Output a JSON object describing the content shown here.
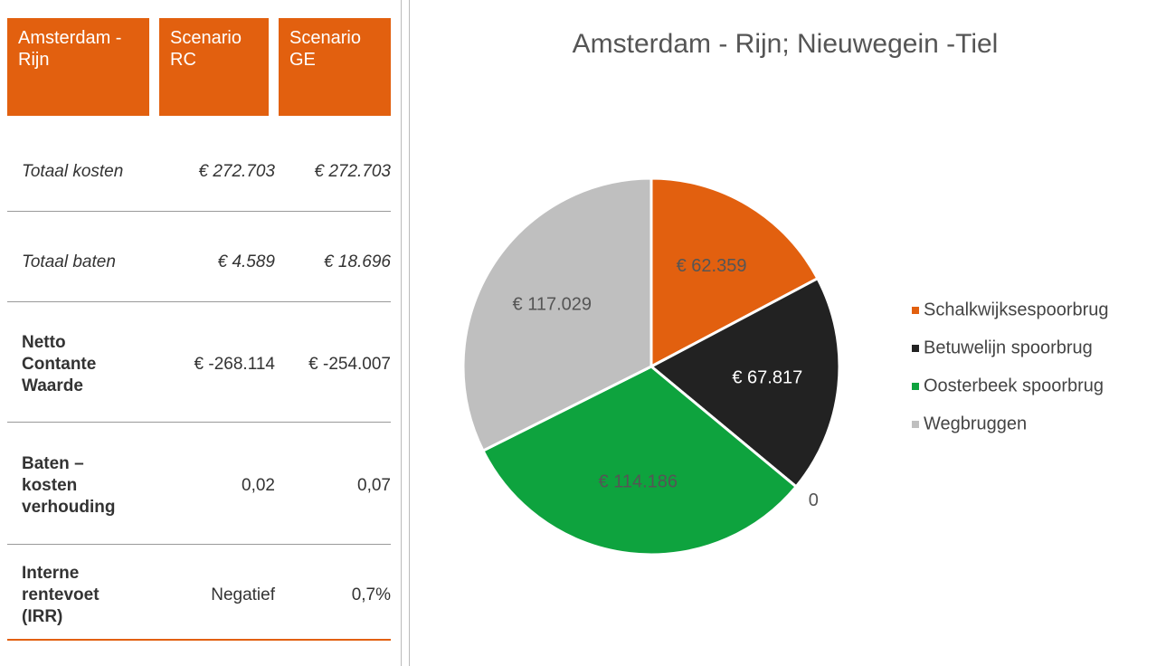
{
  "table": {
    "header": [
      "Amsterdam - Rijn",
      "Scenario RC",
      "Scenario GE"
    ],
    "rows": [
      [
        "Totaal kosten",
        "€ 272.703",
        "€ 272.703"
      ],
      [
        "Totaal baten",
        "€ 4.589",
        "€ 18.696"
      ],
      [
        "Netto Contante Waarde",
        "€ -268.114",
        "€ -254.007"
      ],
      [
        "Baten – kosten verhouding",
        "0,02",
        "0,07"
      ],
      [
        "Interne rentevoet (IRR)",
        "Negatief",
        "0,7%"
      ]
    ]
  },
  "chart_data": {
    "type": "pie",
    "title": "Amsterdam - Rijn; Nieuwegein -Tiel",
    "categories": [
      "Schalkwijksespoorbrug",
      "Betuwelijn spoorbrug",
      null,
      "Oosterbeek spoorbrug",
      "Wegbruggen"
    ],
    "values": [
      62359,
      67817,
      0,
      114186,
      117029
    ],
    "value_labels": [
      "€ 62.359",
      "€ 67.817",
      "0",
      "€ 114.186",
      "€ 117.029"
    ],
    "colors": [
      "#e2600f",
      "#222222",
      null,
      "#0ea33e",
      "#bfbfbf"
    ],
    "legend": "right"
  }
}
